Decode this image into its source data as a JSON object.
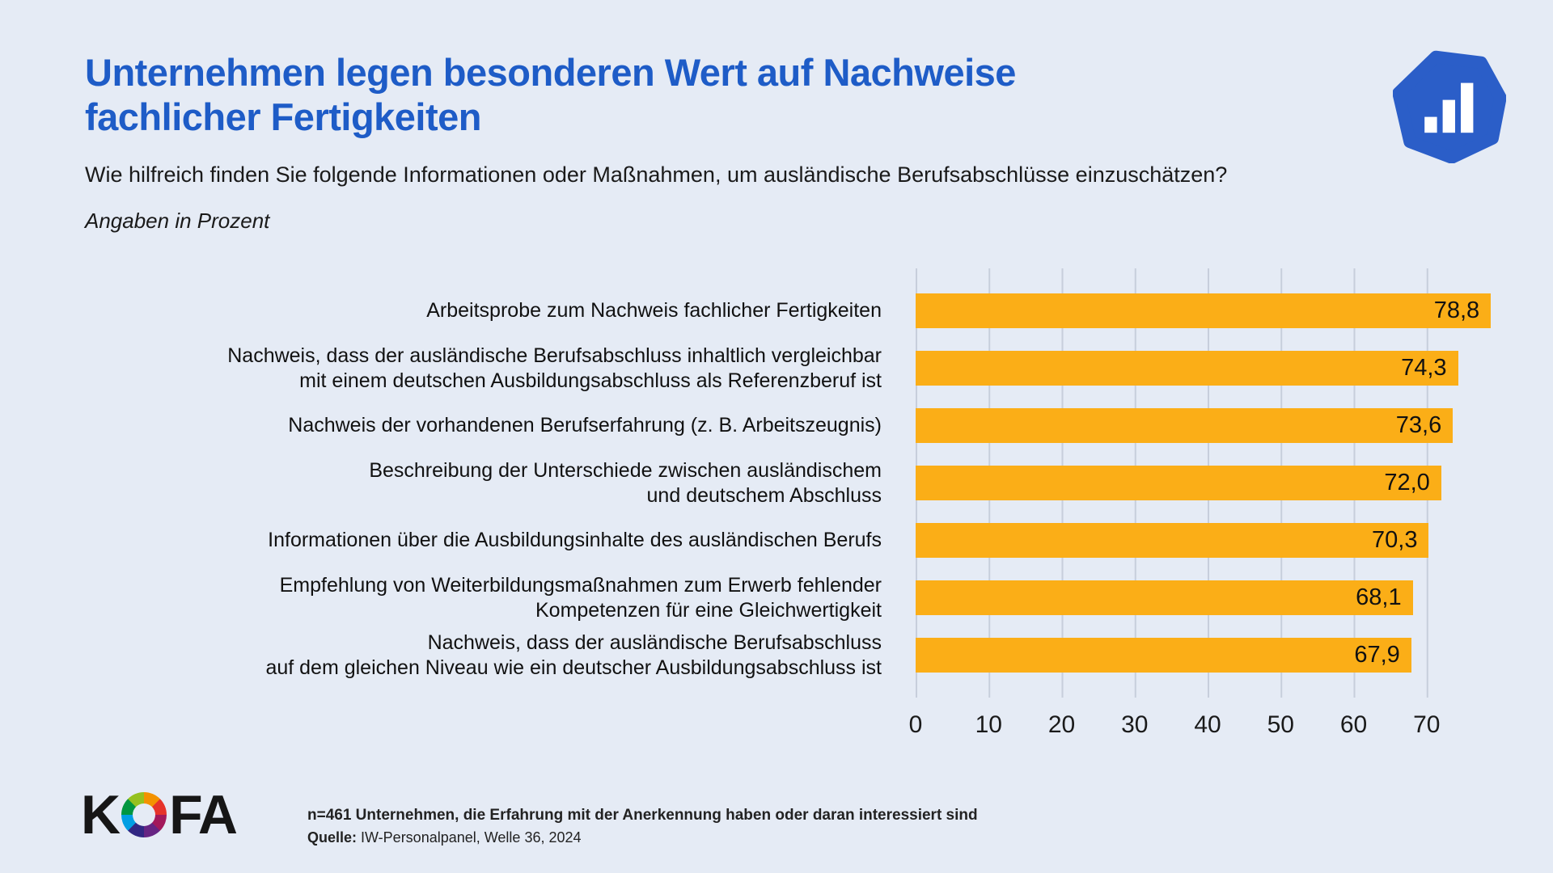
{
  "page": {
    "title": "Unternehmen legen besonderen Wert auf Nachweise\nfachlicher Fertigkeiten",
    "subtitle": "Wie hilfreich finden Sie folgende Informationen oder Maßnahmen, um ausländische Berufsabschlüsse einzuschätzen?",
    "unit_note": "Angaben in Prozent"
  },
  "chart_data": {
    "type": "bar",
    "orientation": "horizontal",
    "categories": [
      "Arbeitsprobe zum Nachweis fachlicher Fertigkeiten",
      "Nachweis, dass der ausländische Berufsabschluss inhaltlich vergleichbar\nmit einem deutschen Ausbildungsabschluss als Referenzberuf ist",
      "Nachweis der vorhandenen Berufserfahrung (z. B. Arbeitszeugnis)",
      "Beschreibung der Unterschiede zwischen ausländischem\nund deutschem Abschluss",
      "Informationen über die Ausbildungsinhalte des ausländischen Berufs",
      "Empfehlung von Weiterbildungsmaßnahmen zum Erwerb fehlender\nKompetenzen für eine Gleichwertigkeit",
      "Nachweis, dass der ausländische Berufsabschluss\nauf dem gleichen Niveau wie ein deutscher Ausbildungsabschluss ist"
    ],
    "values": [
      78.8,
      74.3,
      73.6,
      72.0,
      70.3,
      68.1,
      67.9
    ],
    "value_labels": [
      "78,8",
      "74,3",
      "73,6",
      "72,0",
      "70,3",
      "68,1",
      "67,9"
    ],
    "title": "Unternehmen legen besonderen Wert auf Nachweise fachlicher Fertigkeiten",
    "xlabel": "",
    "ylabel": "",
    "xlim": [
      0,
      80
    ],
    "x_ticks": [
      0,
      10,
      20,
      30,
      40,
      50,
      60,
      70
    ],
    "grid": true,
    "legend": "none",
    "bar_color": "#FBAE17",
    "grid_color": "#C7CEDC"
  },
  "branding": {
    "chart_icon": "bar-chart-icon",
    "icon_color": "#2B5EC8",
    "kofa_k": "K",
    "kofa_fa": "FA"
  },
  "footer": {
    "note": "n=461 Unternehmen, die Erfahrung mit der Anerkennung haben oder daran interessiert sind",
    "source_label": "Quelle:",
    "source_text": " IW-Personalpanel, Welle 36, 2024"
  },
  "colors": {
    "background": "#E5EBF5",
    "title_blue": "#1E5CC7",
    "bar_orange": "#FBAE17"
  }
}
